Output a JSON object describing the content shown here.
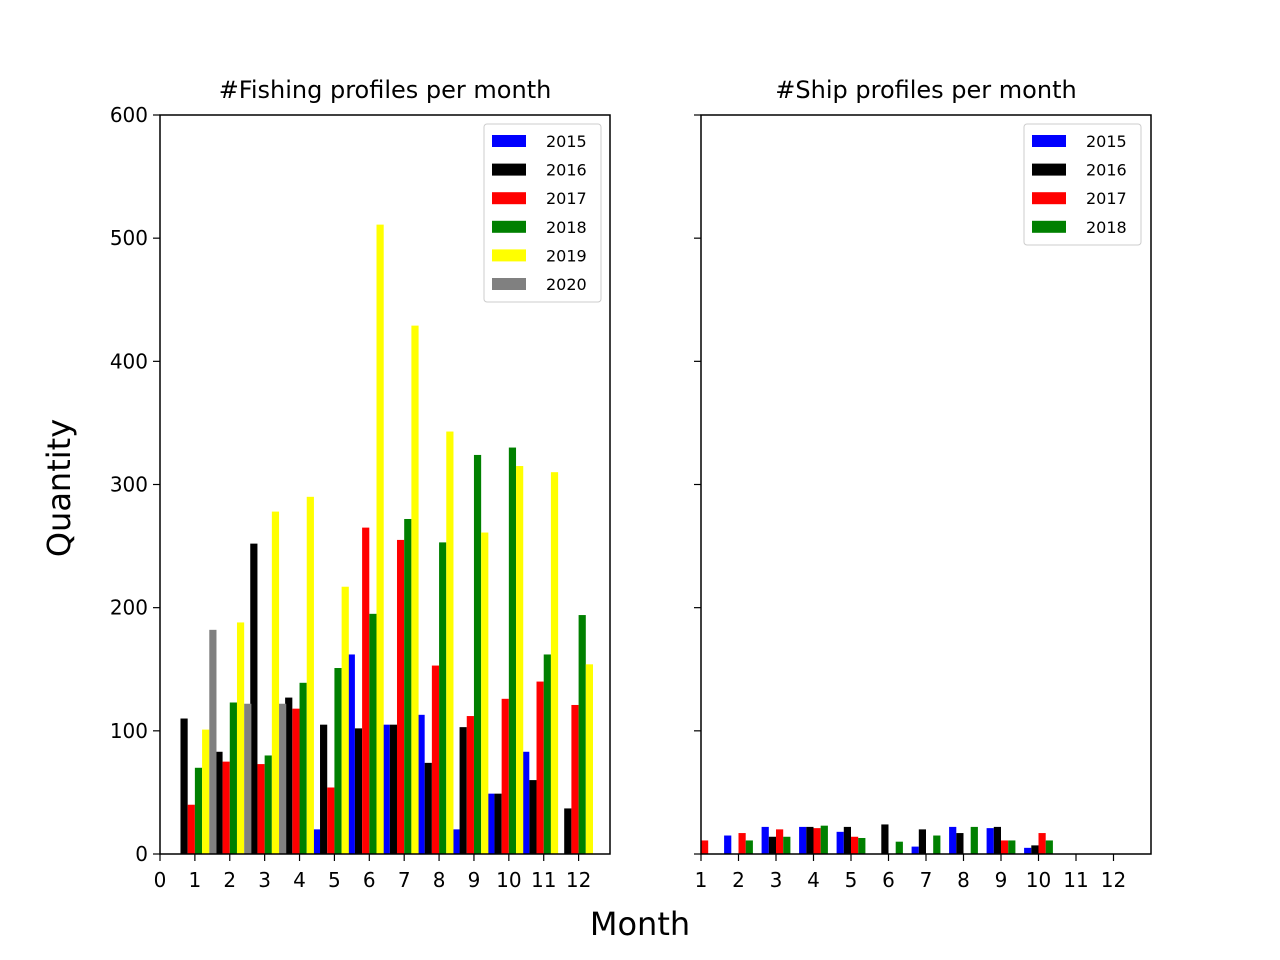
{
  "figure": {
    "ylabel": "Quantity",
    "xlabel": "Month"
  },
  "chart_data": [
    {
      "type": "bar",
      "title": "#Fishing profiles per month",
      "xlim": [
        0,
        12.9
      ],
      "ylim": [
        0,
        600
      ],
      "xticks": [
        "0",
        "1",
        "2",
        "3",
        "4",
        "5",
        "6",
        "7",
        "8",
        "9",
        "10",
        "11",
        "12"
      ],
      "yticks": [
        "0",
        "100",
        "200",
        "300",
        "400",
        "500",
        "600"
      ],
      "categories": [
        1,
        2,
        3,
        4,
        5,
        6,
        7,
        8,
        9,
        10,
        11,
        12
      ],
      "legend_position": "top-right",
      "series": [
        {
          "name": "2015",
          "color": "#0000ff",
          "values": [
            0,
            0,
            0,
            0,
            20,
            162,
            105,
            113,
            20,
            49,
            83,
            0
          ]
        },
        {
          "name": "2016",
          "color": "#000000",
          "values": [
            110,
            83,
            252,
            127,
            105,
            102,
            105,
            74,
            103,
            49,
            60,
            37
          ]
        },
        {
          "name": "2017",
          "color": "#ff0000",
          "values": [
            40,
            75,
            73,
            118,
            54,
            265,
            255,
            153,
            112,
            126,
            140,
            121
          ]
        },
        {
          "name": "2018",
          "color": "#008000",
          "values": [
            70,
            123,
            80,
            139,
            151,
            195,
            272,
            253,
            324,
            330,
            162,
            194
          ]
        },
        {
          "name": "2019",
          "color": "#ffff00",
          "values": [
            101,
            188,
            278,
            290,
            217,
            511,
            429,
            343,
            261,
            315,
            310,
            154
          ]
        },
        {
          "name": "2020",
          "color": "#808080",
          "values": [
            182,
            122,
            122,
            0,
            0,
            0,
            0,
            0,
            0,
            0,
            0,
            0
          ]
        }
      ]
    },
    {
      "type": "bar",
      "title": "#Ship profiles per month",
      "xlim": [
        1,
        13.0
      ],
      "ylim": [
        0,
        600
      ],
      "xticks": [
        "1",
        "2",
        "3",
        "4",
        "5",
        "6",
        "7",
        "8",
        "9",
        "10",
        "11",
        "12"
      ],
      "categories": [
        1,
        2,
        3,
        4,
        5,
        6,
        7,
        8,
        9,
        10,
        11,
        12
      ],
      "legend_position": "top-right",
      "series": [
        {
          "name": "2015",
          "color": "#0000ff",
          "values": [
            0,
            15,
            22,
            22,
            18,
            0,
            6,
            22,
            21,
            5,
            0,
            0
          ]
        },
        {
          "name": "2016",
          "color": "#000000",
          "values": [
            0,
            0,
            14,
            22,
            22,
            24,
            20,
            17,
            22,
            7,
            0,
            0
          ]
        },
        {
          "name": "2017",
          "color": "#ff0000",
          "values": [
            11,
            17,
            20,
            21,
            14,
            0,
            0,
            0,
            11,
            17,
            0,
            0
          ]
        },
        {
          "name": "2018",
          "color": "#008000",
          "values": [
            0,
            11,
            14,
            23,
            13,
            10,
            15,
            22,
            11,
            11,
            0,
            0
          ]
        }
      ]
    }
  ]
}
